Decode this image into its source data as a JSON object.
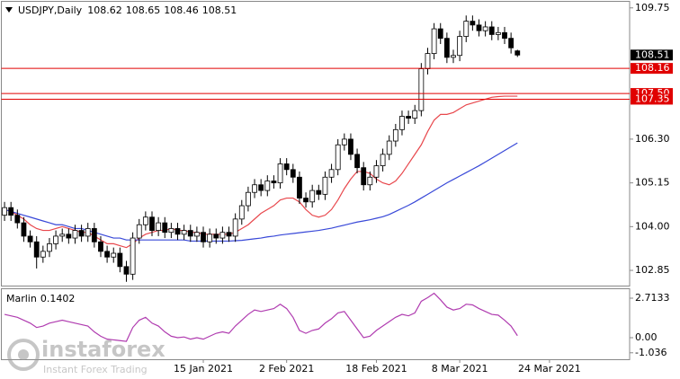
{
  "chart_data": [
    {
      "type": "candlestick",
      "title": "USDJPY,Daily",
      "categories": [
        null,
        null,
        null,
        null,
        null,
        null,
        null,
        null,
        null,
        null,
        null,
        null,
        null,
        null,
        null,
        null,
        null,
        null,
        null,
        null,
        null,
        null,
        null,
        null,
        null,
        null,
        null,
        null,
        null,
        null,
        null,
        "15 Jan 2021",
        null,
        null,
        null,
        null,
        null,
        null,
        null,
        null,
        null,
        null,
        null,
        null,
        "2 Feb 2021",
        null,
        null,
        null,
        null,
        null,
        null,
        null,
        null,
        null,
        null,
        null,
        null,
        null,
        "18 Feb 2021",
        null,
        null,
        null,
        null,
        null,
        null,
        null,
        null,
        null,
        null,
        null,
        null,
        "8 Mar 2021",
        null,
        null,
        null,
        null,
        null,
        null,
        null,
        null,
        null,
        null,
        null,
        null,
        null,
        "24 Mar 2021",
        null,
        null,
        null,
        null,
        null,
        null,
        null,
        null,
        null,
        null,
        null,
        null
      ],
      "open": [
        104.3,
        104.5,
        104.3,
        104.1,
        103.75,
        103.6,
        103.2,
        103.35,
        103.55,
        103.75,
        103.8,
        103.7,
        103.9,
        103.75,
        103.95,
        103.6,
        103.35,
        103.2,
        103.3,
        102.95,
        102.75,
        103.7,
        104.05,
        104.25,
        103.9,
        104.1,
        103.85,
        103.95,
        103.8,
        103.9,
        103.75,
        103.85,
        103.6,
        103.8,
        103.7,
        103.85,
        103.75,
        104.2,
        104.55,
        104.9,
        105.1,
        104.95,
        105.2,
        105.15,
        105.65,
        105.5,
        105.3,
        104.75,
        104.65,
        104.95,
        104.85,
        105.3,
        105.5,
        106.15,
        106.3,
        105.9,
        105.55,
        105.1,
        105.3,
        105.6,
        105.9,
        106.25,
        106.55,
        106.9,
        106.85,
        107.05,
        108.15,
        108.55,
        109.2,
        108.95,
        108.45,
        108.5,
        109.0,
        109.4,
        109.3,
        109.15,
        109.25,
        109.05,
        109.1,
        108.95,
        108.62,
        null,
        null,
        null,
        null,
        null,
        null,
        null,
        null,
        null,
        null,
        null,
        null,
        null,
        null,
        null,
        null,
        null
      ],
      "high": [
        104.65,
        104.65,
        104.45,
        104.25,
        103.9,
        103.75,
        103.5,
        103.7,
        103.9,
        103.95,
        103.95,
        104.05,
        104.05,
        104.1,
        104.1,
        103.75,
        103.5,
        103.45,
        103.45,
        103.1,
        103.85,
        104.2,
        104.4,
        104.4,
        104.25,
        104.25,
        104.1,
        104.1,
        104.05,
        104.05,
        104.0,
        104.0,
        103.95,
        103.95,
        104.0,
        104.0,
        104.35,
        104.7,
        105.05,
        105.25,
        105.25,
        105.35,
        105.35,
        105.8,
        105.8,
        105.65,
        105.45,
        104.9,
        105.1,
        105.1,
        105.45,
        105.65,
        106.3,
        106.45,
        106.45,
        106.05,
        105.7,
        105.45,
        105.75,
        106.05,
        106.4,
        106.7,
        107.05,
        107.05,
        107.2,
        108.3,
        108.7,
        109.35,
        109.35,
        109.1,
        108.65,
        109.15,
        109.55,
        109.55,
        109.45,
        109.4,
        109.4,
        109.25,
        109.25,
        109.1,
        108.65,
        null,
        null,
        null,
        null,
        null,
        null,
        null,
        null,
        null,
        null,
        null,
        null,
        null,
        null,
        null,
        null,
        null
      ],
      "low": [
        104.15,
        104.15,
        103.95,
        103.6,
        103.45,
        102.9,
        103.05,
        103.2,
        103.4,
        103.6,
        103.55,
        103.55,
        103.6,
        103.6,
        103.45,
        103.2,
        103.05,
        103.05,
        102.8,
        102.55,
        102.6,
        103.55,
        103.9,
        103.75,
        103.75,
        103.7,
        103.7,
        103.65,
        103.65,
        103.6,
        103.6,
        103.45,
        103.45,
        103.55,
        103.55,
        103.6,
        103.6,
        104.05,
        104.4,
        104.75,
        104.8,
        104.8,
        105.0,
        105.0,
        105.35,
        105.15,
        104.6,
        104.5,
        104.5,
        104.7,
        104.7,
        105.15,
        105.35,
        106.0,
        105.75,
        105.4,
        104.95,
        104.95,
        105.15,
        105.45,
        105.75,
        106.1,
        106.4,
        106.7,
        106.7,
        106.9,
        108.0,
        108.4,
        108.8,
        108.3,
        108.3,
        108.35,
        108.85,
        109.15,
        109.0,
        109.0,
        108.9,
        108.9,
        108.8,
        108.55,
        108.46,
        null,
        null,
        null,
        null,
        null,
        null,
        null,
        null,
        null,
        null,
        null,
        null,
        null,
        null,
        null,
        null,
        null
      ],
      "close": [
        104.5,
        104.3,
        104.1,
        103.75,
        103.6,
        103.2,
        103.35,
        103.55,
        103.75,
        103.8,
        103.7,
        103.9,
        103.75,
        103.95,
        103.6,
        103.35,
        103.2,
        103.3,
        102.95,
        102.75,
        103.7,
        104.05,
        104.25,
        103.9,
        104.1,
        103.85,
        103.95,
        103.8,
        103.9,
        103.75,
        103.85,
        103.6,
        103.8,
        103.7,
        103.85,
        103.75,
        104.2,
        104.55,
        104.9,
        105.1,
        104.95,
        105.2,
        105.15,
        105.65,
        105.5,
        105.3,
        104.75,
        104.65,
        104.95,
        104.85,
        105.3,
        105.5,
        106.15,
        106.3,
        105.9,
        105.55,
        105.1,
        105.3,
        105.6,
        105.9,
        106.25,
        106.55,
        106.9,
        106.85,
        107.05,
        108.15,
        108.55,
        109.2,
        108.95,
        108.45,
        108.5,
        109.0,
        109.4,
        109.3,
        109.15,
        109.25,
        109.05,
        109.1,
        108.95,
        108.7,
        108.51,
        null,
        null,
        null,
        null,
        null,
        null,
        null,
        null,
        null,
        null,
        null,
        null,
        null,
        null,
        null,
        null,
        null
      ],
      "up_color": "#ffffff",
      "down_color": "#000000",
      "series": [
        {
          "color": "#e8474c",
          "values": [
            104.45,
            104.4,
            104.3,
            104.2,
            104.05,
            103.95,
            103.9,
            103.9,
            103.95,
            104.0,
            103.95,
            103.9,
            103.85,
            103.85,
            103.75,
            103.65,
            103.55,
            103.55,
            103.5,
            103.45,
            103.55,
            103.7,
            103.8,
            103.85,
            103.9,
            103.9,
            103.95,
            103.9,
            103.9,
            103.85,
            103.85,
            103.8,
            103.8,
            103.8,
            103.8,
            103.8,
            103.85,
            103.95,
            104.05,
            104.2,
            104.35,
            104.45,
            104.55,
            104.7,
            104.75,
            104.75,
            104.65,
            104.45,
            104.3,
            104.25,
            104.3,
            104.45,
            104.7,
            105.0,
            105.25,
            105.45,
            105.45,
            105.4,
            105.25,
            105.15,
            105.1,
            105.2,
            105.4,
            105.65,
            105.9,
            106.15,
            106.5,
            106.8,
            106.95,
            106.95,
            107.0,
            107.1,
            107.2,
            107.25,
            107.3,
            107.35,
            107.4,
            107.42,
            107.43,
            107.43,
            107.43,
            null,
            null,
            null,
            null,
            null,
            null,
            null,
            null,
            null,
            null,
            null,
            null,
            null,
            null,
            null,
            null,
            null
          ]
        },
        {
          "color": "#3848d8",
          "values": [
            104.45,
            104.4,
            104.35,
            104.3,
            104.25,
            104.2,
            104.15,
            104.1,
            104.05,
            104.05,
            104.0,
            103.95,
            103.95,
            103.9,
            103.85,
            103.8,
            103.75,
            103.7,
            103.7,
            103.65,
            103.65,
            103.65,
            103.65,
            103.65,
            103.65,
            103.65,
            103.65,
            103.65,
            103.65,
            103.62,
            103.62,
            103.62,
            103.62,
            103.62,
            103.62,
            103.62,
            103.63,
            103.64,
            103.66,
            103.68,
            103.7,
            103.73,
            103.75,
            103.78,
            103.8,
            103.82,
            103.84,
            103.86,
            103.88,
            103.9,
            103.93,
            103.96,
            104.0,
            104.04,
            104.08,
            104.12,
            104.15,
            104.18,
            104.22,
            104.26,
            104.32,
            104.4,
            104.48,
            104.56,
            104.65,
            104.75,
            104.85,
            104.95,
            105.05,
            105.15,
            105.24,
            105.33,
            105.42,
            105.51,
            105.6,
            105.7,
            105.8,
            105.9,
            106.0,
            106.1,
            106.2,
            null,
            null,
            null,
            null,
            null,
            null,
            null,
            null,
            null,
            null,
            null,
            null,
            null,
            null,
            null,
            null,
            null
          ]
        }
      ],
      "levels": [
        108.16,
        {
          "value": 107.5,
          "label": "107.50"
        },
        107.35
      ],
      "level_color": "#e00000",
      "ylim": [
        102.45,
        109.91
      ],
      "yticks": [
        102.85,
        {
          "value": 104,
          "label": "104.00"
        },
        105.15,
        {
          "value": 106.3,
          "label": "106.30"
        },
        109.75
      ]
    },
    {
      "type": "line",
      "title": "Marlin",
      "color": "#b03cb0",
      "values": [
        1.6,
        1.5,
        1.4,
        1.2,
        1.0,
        0.7,
        0.8,
        1.0,
        1.1,
        1.2,
        1.1,
        1.0,
        0.9,
        0.8,
        0.4,
        0.1,
        -0.1,
        -0.15,
        -0.2,
        -0.25,
        0.7,
        1.2,
        1.4,
        1.0,
        0.8,
        0.4,
        0.1,
        0.0,
        0.05,
        -0.1,
        0.0,
        -0.1,
        0.1,
        0.3,
        0.4,
        0.3,
        0.8,
        1.2,
        1.6,
        1.9,
        1.8,
        1.9,
        2.0,
        2.3,
        2.0,
        1.4,
        0.5,
        0.3,
        0.5,
        0.6,
        1.0,
        1.3,
        1.7,
        1.8,
        1.2,
        0.6,
        0.0,
        0.1,
        0.5,
        0.8,
        1.1,
        1.4,
        1.6,
        1.5,
        1.7,
        2.5,
        2.75,
        3.05,
        2.6,
        2.1,
        1.9,
        2.0,
        2.3,
        2.25,
        2.0,
        1.8,
        1.6,
        1.55,
        1.2,
        0.8,
        0.1402,
        null,
        null,
        null,
        null,
        null,
        null,
        null,
        null,
        null,
        null,
        null,
        null,
        null,
        null,
        null,
        null,
        null
      ],
      "ylim": [
        -1.48,
        3.33
      ],
      "yticks": [
        -1.036,
        {
          "value": 0,
          "label": "0.00"
        },
        2.7133
      ]
    }
  ],
  "watermark": {
    "brand": "instaforex",
    "tagline": "Instant Forex Trading"
  }
}
